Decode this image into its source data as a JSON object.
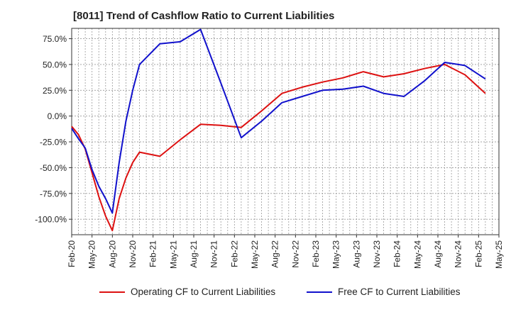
{
  "chart_data": {
    "type": "line",
    "title": "[8011]  Trend of Cashflow Ratio to Current Liabilities",
    "x_tick_labels": [
      "Feb-20",
      "May-20",
      "Aug-20",
      "Nov-20",
      "Feb-21",
      "May-21",
      "Aug-21",
      "Nov-21",
      "Feb-22",
      "May-22",
      "Aug-22",
      "Nov-22",
      "Feb-23",
      "May-23",
      "Aug-23",
      "Nov-23",
      "Feb-24",
      "May-24",
      "Aug-24",
      "Nov-24",
      "Feb-25",
      "May-25"
    ],
    "y_ticks": [
      75,
      50,
      25,
      0,
      -25,
      -50,
      -75,
      -100
    ],
    "y_tick_labels": [
      "75.0%",
      "50.0%",
      "25.0%",
      "0.0%",
      "-25.0%",
      "-50.0%",
      "-75.0%",
      "-100.0%"
    ],
    "ylim": [
      -115,
      85
    ],
    "grid": true,
    "legend_position": "bottom",
    "series": [
      {
        "name": "Operating CF to Current Liabilities",
        "color": "#dd1111",
        "points": [
          {
            "x": "Feb-20",
            "y": -10
          },
          {
            "x": "Mar-20",
            "y": -18
          },
          {
            "x": "Apr-20",
            "y": -32
          },
          {
            "x": "May-20",
            "y": -55
          },
          {
            "x": "Jun-20",
            "y": -78
          },
          {
            "x": "Jul-20",
            "y": -97
          },
          {
            "x": "Aug-20",
            "y": -111
          },
          {
            "x": "Sep-20",
            "y": -80
          },
          {
            "x": "Oct-20",
            "y": -60
          },
          {
            "x": "Nov-20",
            "y": -45
          },
          {
            "x": "Dec-20",
            "y": -35
          },
          {
            "x": "Mar-21",
            "y": -39
          },
          {
            "x": "Jun-21",
            "y": -23
          },
          {
            "x": "Sep-21",
            "y": -8
          },
          {
            "x": "Dec-21",
            "y": -9
          },
          {
            "x": "Mar-22",
            "y": -11
          },
          {
            "x": "Jun-22",
            "y": 5
          },
          {
            "x": "Sep-22",
            "y": 22
          },
          {
            "x": "Dec-22",
            "y": 28
          },
          {
            "x": "Mar-23",
            "y": 33
          },
          {
            "x": "Jun-23",
            "y": 37
          },
          {
            "x": "Sep-23",
            "y": 43
          },
          {
            "x": "Dec-23",
            "y": 38
          },
          {
            "x": "Mar-24",
            "y": 41
          },
          {
            "x": "Jun-24",
            "y": 46
          },
          {
            "x": "Sep-24",
            "y": 50
          },
          {
            "x": "Dec-24",
            "y": 40
          },
          {
            "x": "Mar-25",
            "y": 22
          }
        ]
      },
      {
        "name": "Free CF to Current Liabilities",
        "color": "#1111cc",
        "points": [
          {
            "x": "Feb-20",
            "y": -12
          },
          {
            "x": "Mar-20",
            "y": -22
          },
          {
            "x": "Apr-20",
            "y": -31
          },
          {
            "x": "May-20",
            "y": -52
          },
          {
            "x": "Jun-20",
            "y": -68
          },
          {
            "x": "Jul-20",
            "y": -80
          },
          {
            "x": "Aug-20",
            "y": -94
          },
          {
            "x": "Sep-20",
            "y": -45
          },
          {
            "x": "Oct-20",
            "y": -5
          },
          {
            "x": "Nov-20",
            "y": 25
          },
          {
            "x": "Dec-20",
            "y": 50
          },
          {
            "x": "Mar-21",
            "y": 70
          },
          {
            "x": "Jun-21",
            "y": 72
          },
          {
            "x": "Sep-21",
            "y": 84
          },
          {
            "x": "Dec-21",
            "y": 32
          },
          {
            "x": "Mar-22",
            "y": -21
          },
          {
            "x": "Jun-22",
            "y": -5
          },
          {
            "x": "Sep-22",
            "y": 13
          },
          {
            "x": "Dec-22",
            "y": 19
          },
          {
            "x": "Mar-23",
            "y": 25
          },
          {
            "x": "Jun-23",
            "y": 26
          },
          {
            "x": "Sep-23",
            "y": 29
          },
          {
            "x": "Dec-23",
            "y": 22
          },
          {
            "x": "Mar-24",
            "y": 19
          },
          {
            "x": "Jun-24",
            "y": 34
          },
          {
            "x": "Sep-24",
            "y": 52
          },
          {
            "x": "Dec-24",
            "y": 49
          },
          {
            "x": "Mar-25",
            "y": 36
          }
        ]
      }
    ]
  }
}
